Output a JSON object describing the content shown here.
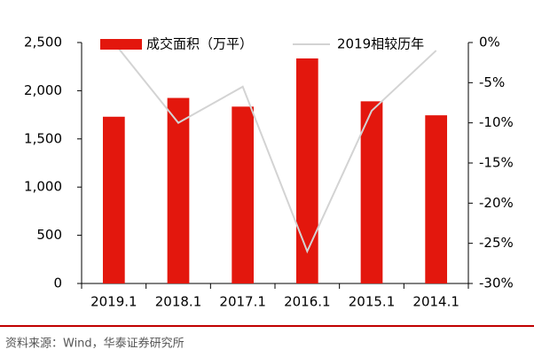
{
  "chart_data": {
    "type": "bar",
    "categories": [
      "2019.1",
      "2018.1",
      "2017.1",
      "2016.1",
      "2015.1",
      "2014.1"
    ],
    "series": [
      {
        "name": "成交面积（万平）",
        "type": "bar",
        "color": "#e3170d",
        "values": [
          1730,
          1925,
          1835,
          2335,
          1890,
          1745
        ]
      },
      {
        "name": "2019相较历年",
        "type": "line",
        "axis": "y2",
        "color": "#d3d3d3",
        "values": [
          0,
          -10,
          -5.5,
          -26,
          -8.5,
          -1
        ]
      }
    ],
    "ylim": [
      0,
      2500
    ],
    "yticks": [
      0,
      500,
      {
        "value": 1000,
        "label": "1,000"
      },
      {
        "value": 1500,
        "label": "1,500"
      },
      {
        "value": 2000,
        "label": "2,000"
      },
      {
        "value": 2500,
        "label": "2,500"
      }
    ],
    "y2lim": [
      -30,
      0
    ],
    "y2ticks": [
      {
        "value": -30,
        "label": "-30%"
      },
      {
        "value": -25,
        "label": "-25%"
      },
      {
        "value": -20,
        "label": "-20%"
      },
      {
        "value": -15,
        "label": "-15%"
      },
      {
        "value": -10,
        "label": "-10%"
      },
      {
        "value": -5,
        "label": "-5%"
      },
      {
        "value": 0,
        "label": "0%"
      }
    ],
    "source": "资料来源：Wind，华泰证券研究所"
  }
}
